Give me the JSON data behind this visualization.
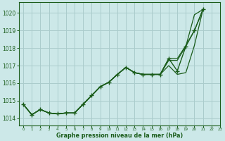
{
  "title": "Graphe pression niveau de la mer (hPa)",
  "bg_color": "#cce8e8",
  "grid_color": "#aacccc",
  "line_color": "#1a5c1a",
  "xlim": [
    -0.5,
    23
  ],
  "ylim": [
    1013.6,
    1020.6
  ],
  "yticks": [
    1014,
    1015,
    1016,
    1017,
    1018,
    1019,
    1020
  ],
  "xticks": [
    0,
    1,
    2,
    3,
    4,
    5,
    6,
    7,
    8,
    9,
    10,
    11,
    12,
    13,
    14,
    15,
    16,
    17,
    18,
    19,
    20,
    21,
    22,
    23
  ],
  "series": [
    [
      1014.8,
      1014.2,
      1014.5,
      1014.3,
      1014.25,
      1014.3,
      1014.3,
      1014.8,
      1015.3,
      1015.8,
      1016.05,
      1016.5,
      1016.9,
      1016.6,
      1016.5,
      1016.5,
      1016.5,
      1017.4,
      1016.7,
      1018.1,
      1019.0,
      1020.2
    ],
    [
      1014.8,
      1014.2,
      1014.5,
      1014.3,
      1014.25,
      1014.3,
      1014.3,
      1014.8,
      1015.3,
      1015.8,
      1016.05,
      1016.5,
      1016.9,
      1016.6,
      1016.5,
      1016.5,
      1016.5,
      1017.3,
      1017.3,
      1018.1,
      1019.9,
      1020.2
    ],
    [
      1014.8,
      1014.2,
      1014.5,
      1014.3,
      1014.25,
      1014.3,
      1014.3,
      1014.8,
      1015.3,
      1015.8,
      1016.05,
      1016.5,
      1016.9,
      1016.6,
      1016.5,
      1016.5,
      1016.5,
      1017.4,
      1017.4,
      1018.15,
      1019.0,
      1020.2
    ],
    [
      1014.8,
      1014.2,
      1014.5,
      1014.3,
      1014.25,
      1014.3,
      1014.3,
      1014.8,
      1015.3,
      1015.8,
      1016.05,
      1016.5,
      1016.9,
      1016.6,
      1016.5,
      1016.5,
      1016.5,
      1017.0,
      1016.5,
      1016.6,
      1018.15,
      1020.2
    ]
  ],
  "marker_series_idx": 0,
  "marker": "+",
  "marker_size": 4.0
}
